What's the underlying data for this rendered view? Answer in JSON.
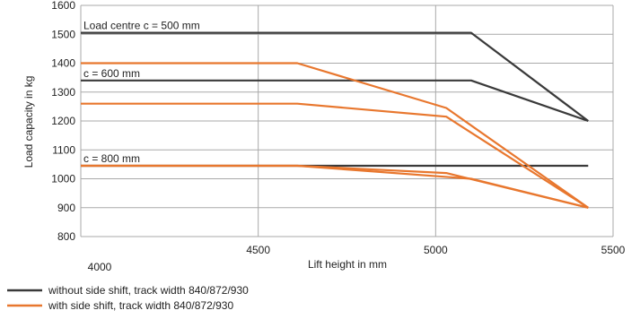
{
  "chart_data": {
    "type": "line",
    "xlabel": "Lift height in mm",
    "ylabel": "Load capacity in kg",
    "xlim": [
      4000,
      5500
    ],
    "ylim": [
      800,
      1600
    ],
    "xticks": [
      4000,
      4500,
      5000,
      5500
    ],
    "yticks": [
      800,
      900,
      1000,
      1100,
      1200,
      1300,
      1400,
      1500,
      1600
    ],
    "grid": true,
    "colors": {
      "without": "#3a3a3a",
      "with": "#e8772e"
    },
    "annotations": [
      {
        "text": "Load centre c = 500 mm",
        "x": 4000,
        "y": 1505
      },
      {
        "text": "c = 600 mm",
        "x": 4000,
        "y": 1340
      },
      {
        "text": "c = 800 mm",
        "x": 4000,
        "y": 1045
      }
    ],
    "series": [
      {
        "group": "without",
        "points": [
          [
            4000,
            1505
          ],
          [
            5100,
            1505
          ],
          [
            5430,
            1200
          ]
        ]
      },
      {
        "group": "without",
        "points": [
          [
            4000,
            1340
          ],
          [
            5100,
            1340
          ],
          [
            5430,
            1200
          ]
        ]
      },
      {
        "group": "without",
        "points": [
          [
            4000,
            1045
          ],
          [
            5430,
            1045
          ]
        ]
      },
      {
        "group": "with",
        "points": [
          [
            4000,
            1400
          ],
          [
            4610,
            1400
          ],
          [
            5030,
            1245
          ],
          [
            5430,
            900
          ]
        ]
      },
      {
        "group": "with",
        "points": [
          [
            4000,
            1260
          ],
          [
            4610,
            1260
          ],
          [
            5030,
            1215
          ],
          [
            5430,
            900
          ]
        ]
      },
      {
        "group": "with",
        "points": [
          [
            4000,
            1045
          ],
          [
            4610,
            1045
          ],
          [
            5030,
            1020
          ],
          [
            5430,
            900
          ]
        ]
      },
      {
        "group": "with",
        "points": [
          [
            4000,
            1045
          ],
          [
            4610,
            1045
          ],
          [
            5100,
            1000
          ],
          [
            5430,
            900
          ]
        ]
      }
    ],
    "legend": [
      {
        "group": "without",
        "label": "without side shift, track width 840/872/930"
      },
      {
        "group": "with",
        "label": "with side shift, track width 840/872/930"
      }
    ],
    "legend_position": "bottom-left"
  }
}
